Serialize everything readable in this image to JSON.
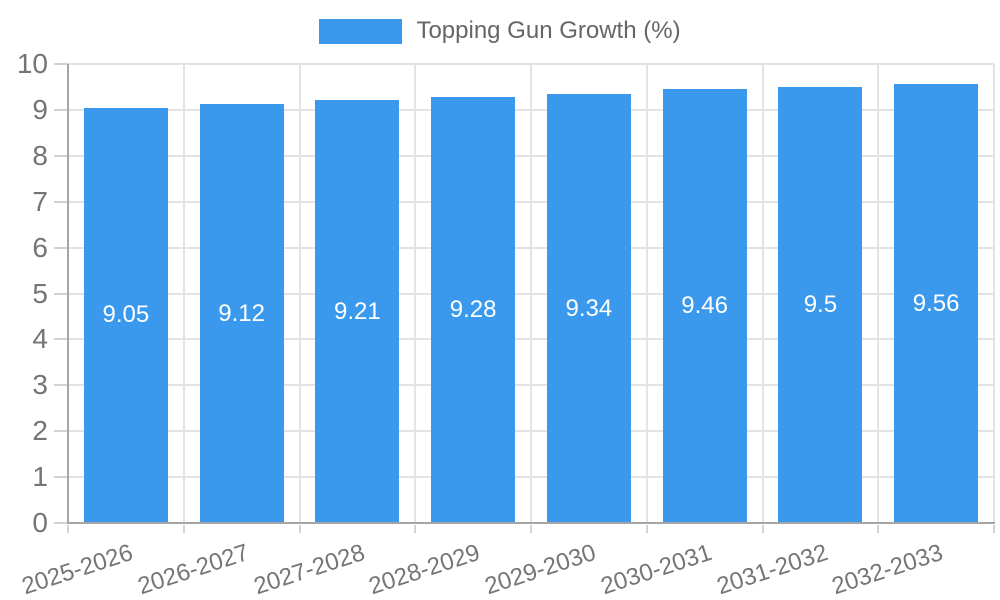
{
  "chart_data": {
    "type": "bar",
    "title": "",
    "legend_position": "top",
    "categories": [
      "2025-2026",
      "2026-2027",
      "2027-2028",
      "2028-2029",
      "2029-2030",
      "2030-2031",
      "2031-2032",
      "2032-2033"
    ],
    "series": [
      {
        "name": "Topping Gun Growth (%)",
        "values": [
          9.05,
          9.12,
          9.21,
          9.28,
          9.34,
          9.46,
          9.5,
          9.56
        ],
        "value_labels": [
          "9.05",
          "9.12",
          "9.21",
          "9.28",
          "9.34",
          "9.46",
          "9.5",
          "9.56"
        ]
      }
    ],
    "xlabel": "",
    "ylabel": "",
    "ylim": [
      0,
      10
    ],
    "yticks": [
      "0",
      "1",
      "2",
      "3",
      "4",
      "5",
      "6",
      "7",
      "8",
      "9",
      "10"
    ],
    "grid": true,
    "bar_label_position": "inside-center",
    "colors": {
      "bar": "#3A99EC",
      "grid": "#E3E3E3",
      "tick_mark": "#D2D2D2",
      "axis_border": "#A6A6A6",
      "tick_label": "#757575",
      "legend_label": "#666666",
      "bar_label": "#FFFFFF",
      "background": "#FFFFFF"
    }
  }
}
